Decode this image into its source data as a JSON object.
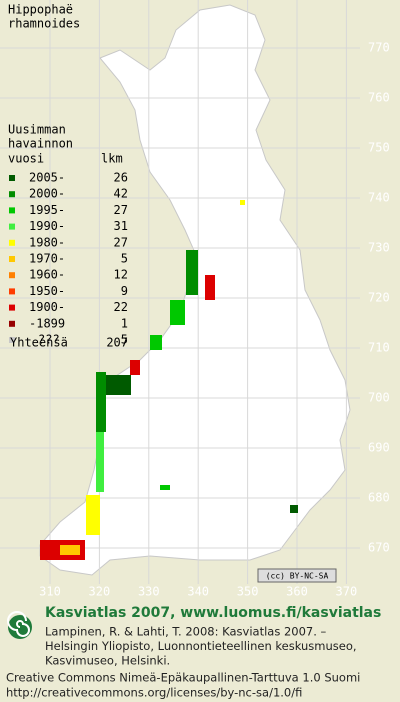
{
  "map": {
    "title": [
      "Hippophaë",
      "rhamnoides"
    ],
    "y_labels": [
      770,
      760,
      750,
      740,
      730,
      720,
      710,
      700,
      690,
      680,
      670
    ],
    "x_labels": [
      310,
      320,
      330,
      340,
      350,
      360,
      370
    ],
    "license_badge": "(cc) BY-NC-SA"
  },
  "legend": {
    "heading": [
      "Uusimman",
      "havainnon"
    ],
    "col_headers": [
      "vuosi",
      "lkm"
    ],
    "rows": [
      {
        "label": "2005-",
        "count": 26,
        "color": "#005a00"
      },
      {
        "label": "2000-",
        "count": 42,
        "color": "#008c00"
      },
      {
        "label": "1995-",
        "count": 27,
        "color": "#00c800"
      },
      {
        "label": "1990-",
        "count": 31,
        "color": "#40ee40"
      },
      {
        "label": "1980-",
        "count": 27,
        "color": "#ffff00"
      },
      {
        "label": "1970-",
        "count": 5,
        "color": "#ffc800"
      },
      {
        "label": "1960-",
        "count": 12,
        "color": "#ff8000"
      },
      {
        "label": "1950-",
        "count": 9,
        "color": "#ff3c00"
      },
      {
        "label": "1900-",
        "count": 22,
        "color": "#dc0000"
      },
      {
        "label": "-1899",
        "count": 1,
        "color": "#960000"
      },
      {
        "label": "???",
        "count": 5,
        "color": "#c8c8c8"
      }
    ],
    "total": {
      "label": "Yhteensä",
      "count": 207
    }
  },
  "footer": {
    "title": "Kasviatlas 2007, www.luomus.fi/kasviatlas",
    "citation": [
      "Lampinen, R. & Lahti, T. 2008: Kasviatlas 2007. –",
      "Helsingin Yliopisto, Luonnontieteellinen keskusmuseo,",
      "Kasvimuseo, Helsinki."
    ],
    "license": [
      "Creative Commons Nimeä-Epäkaupallinen-Tarttuva 1.0 Suomi",
      "http://creativecommons.org/licenses/by-nc-sa/1.0/fi"
    ]
  }
}
